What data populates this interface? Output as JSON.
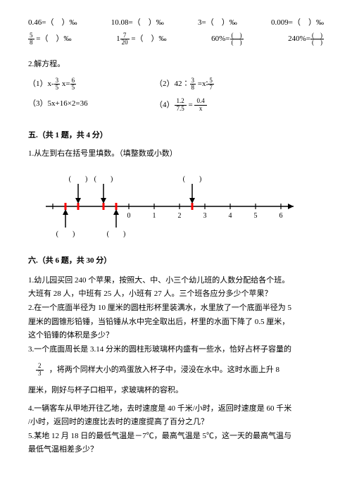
{
  "conversions": {
    "row1": {
      "c1": "0.46=（　）‰",
      "c2": "10.08=（　）‰",
      "c3": "3=（　）‰",
      "c4": "0.009=（　）‰"
    },
    "row2": {
      "c1_pre": "",
      "c1_frac_num": "5",
      "c1_frac_den": "8",
      "c1_post": " =（　）‰",
      "c2_pre": "1",
      "c2_frac_num": "7",
      "c2_frac_den": "20",
      "c2_post": " =（　）‰",
      "c3_pre": "60%=",
      "c3_frac_num": "(　)",
      "c3_frac_den": "(　)",
      "c4_pre": "240%=",
      "c4_frac_num": "(　)",
      "c4_frac_den": "(　)"
    }
  },
  "solve": {
    "title": "2.解方程。",
    "eq1_pre": "（1）x-",
    "eq1_frac_num": "3",
    "eq1_frac_den": "5",
    "eq1_mid": " x=",
    "eq1b_frac_num": "6",
    "eq1b_frac_den": "5",
    "eq2_pre": "（2）42∶",
    "eq2_frac_num": "3",
    "eq2_frac_den": "8",
    "eq2_mid": " =x∶",
    "eq2b_frac_num": "5",
    "eq2b_frac_den": "7",
    "eq3": "（3）5x+16×2=36",
    "eq4_pre": "（4）",
    "eq4_frac_num": "1.2",
    "eq4_frac_den": "7.5",
    "eq4_mid": " = ",
    "eq4b_frac_num": "0.4",
    "eq4b_frac_den": "x"
  },
  "section5": {
    "heading": "五.（共 1 题，共 4 分）",
    "q1": "1.从左到右在括号里填数。（填整数或小数）"
  },
  "numberline": {
    "ticks": [
      -3,
      -2,
      -1,
      0,
      1,
      2,
      3,
      4,
      5,
      6
    ],
    "visible_labels": [
      "0",
      "1",
      "2",
      "3",
      "4",
      "5",
      "6"
    ],
    "label_start_index": 3,
    "tick_color": "#000000",
    "line_color": "#000000",
    "red_marker_color": "#ff0000",
    "arrow_down_positions_idx": [
      1.0,
      2.0,
      5.5
    ],
    "arrow_up_positions_idx": [
      0.5,
      2.5
    ],
    "red_marker_positions_idx": [
      0.5,
      1.0,
      2.0,
      2.5,
      5.5
    ],
    "blank_label": "(　　)"
  },
  "section6": {
    "heading": "六.（共 6 题，共 30 分）",
    "p1a": "1.幼儿园买回 240 个苹果，按照大、中、小三个幼儿班的人数分配给各个班。",
    "p1b": "大班有 28 人，中班有 25 人，小班有 27 人。三个班各应分多少个苹果？",
    "p2a": "2.在一个底面半径为 10 厘米的圆柱形杯里装满水，水里放了一个底面半径为 5",
    "p2b": "厘米的圆锥形铅锤，当铅锤从水中完全取出后，杯里的水面下降了 0.5 厘米，",
    "p2c": "这个铅锤的体积是多少？",
    "p3a": "3.一个底面周长是 3.14 分米的圆柱形玻璃杯内盛有一些水，恰好占杯子容量的",
    "p3_frac_num": "2",
    "p3_frac_den": "3",
    "p3b": "，将两个同样大小的鸡蛋放入杯子中，浸没在水中。这时水面上升 8",
    "p3c": "厘米，刚好与杯子口相平，求玻璃杯的容积。",
    "p4a": "4.一辆客车从甲地开往乙地，去时速度是 40 千米/小时，返回时速度是 60 千米",
    "p4b": "/小时，返回时的速度比去时的速度提高了百分之几？",
    "p5a": "5.某地 12 月 18 日的最低气温是－7℃，最高气温是 5℃，这一天的最高气温与",
    "p5b": "最低气温相差多少？"
  }
}
